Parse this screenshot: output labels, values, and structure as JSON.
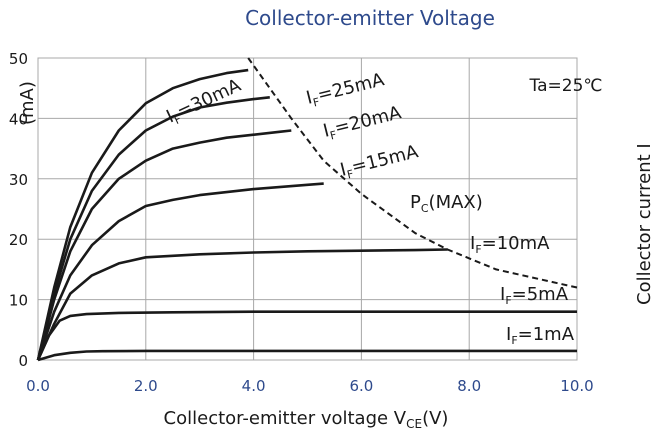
{
  "chart_data": {
    "type": "line",
    "title": "Collector-emitter Voltage",
    "xlabel": "Collector-emitter voltage V",
    "xlabel_sub": "CE",
    "xlabel_unit": "(V)",
    "ylabel_left": "(mA)",
    "ylabel_right": "Collector current I",
    "xlim": [
      0,
      10
    ],
    "ylim": [
      0,
      50
    ],
    "x_ticks": [
      "0.0",
      "2.0",
      "4.0",
      "6.0",
      "8.0",
      "10.0"
    ],
    "y_ticks": [
      "0",
      "10",
      "20",
      "30",
      "40",
      "50"
    ],
    "grid": true,
    "conditions": "Ta=25℃",
    "series": [
      {
        "name": "I_F=1mA",
        "label_main": "I",
        "label_sub": "F",
        "label_rest": "=1mA",
        "x": [
          0,
          0.3,
          0.6,
          0.9,
          1.2,
          2,
          4,
          6,
          8,
          10
        ],
        "y": [
          0,
          0.8,
          1.2,
          1.4,
          1.45,
          1.5,
          1.5,
          1.5,
          1.5,
          1.5
        ]
      },
      {
        "name": "I_F=5mA",
        "label_main": "I",
        "label_sub": "F",
        "label_rest": "=5mA",
        "x": [
          0,
          0.2,
          0.4,
          0.6,
          0.9,
          1.5,
          2.5,
          4,
          6,
          8,
          10
        ],
        "y": [
          0,
          4,
          6.5,
          7.3,
          7.6,
          7.8,
          7.9,
          8,
          8,
          8,
          8
        ]
      },
      {
        "name": "I_F=10mA",
        "label_main": "I",
        "label_sub": "F",
        "label_rest": "=10mA",
        "x": [
          0,
          0.3,
          0.6,
          1,
          1.5,
          2,
          3,
          4,
          5,
          6,
          7,
          7.6
        ],
        "y": [
          0,
          6,
          11,
          14,
          16,
          17,
          17.5,
          17.8,
          18,
          18.1,
          18.2,
          18.3
        ]
      },
      {
        "name": "I_F=15mA",
        "label_main": "I",
        "label_sub": "F",
        "label_rest": "=15mA",
        "x": [
          0,
          0.3,
          0.6,
          1,
          1.5,
          2,
          2.5,
          3,
          4,
          5,
          5.3
        ],
        "y": [
          0,
          8,
          14,
          19,
          23,
          25.5,
          26.5,
          27.3,
          28.3,
          29,
          29.2
        ]
      },
      {
        "name": "I_F=20mA",
        "label_main": "I",
        "label_sub": "F",
        "label_rest": "=20mA",
        "x": [
          0,
          0.3,
          0.6,
          1,
          1.5,
          2,
          2.5,
          3,
          3.5,
          4,
          4.5,
          4.7
        ],
        "y": [
          0,
          10,
          18,
          25,
          30,
          33,
          35,
          36,
          36.8,
          37.3,
          37.8,
          38
        ]
      },
      {
        "name": "I_F=25mA",
        "label_main": "I",
        "label_sub": "F",
        "label_rest": "=25mA",
        "x": [
          0,
          0.3,
          0.6,
          1,
          1.5,
          2,
          2.5,
          3,
          3.5,
          4,
          4.3
        ],
        "y": [
          0,
          11,
          20,
          28,
          34,
          38,
          40.3,
          41.8,
          42.6,
          43.2,
          43.5
        ]
      },
      {
        "name": "I_F=30mA",
        "label_main": "I",
        "label_sub": "F",
        "label_rest": "=30mA",
        "x": [
          0,
          0.3,
          0.6,
          1,
          1.5,
          2,
          2.5,
          3,
          3.5,
          3.9
        ],
        "y": [
          0,
          12,
          22,
          31,
          38,
          42.5,
          45,
          46.5,
          47.5,
          48
        ]
      },
      {
        "name": "P_C(MAX)",
        "label_main": "P",
        "label_sub": "C",
        "label_rest": "(MAX)",
        "dashed": true,
        "x": [
          3.9,
          4.3,
          4.7,
          5.3,
          6,
          7,
          7.6,
          8.5,
          9.5,
          10
        ],
        "y": [
          50,
          45,
          40,
          33,
          27.5,
          21,
          18.3,
          15,
          13,
          12
        ]
      }
    ]
  },
  "colors": {
    "background": "#ffffff",
    "curve": "#1a1a1a",
    "title_text": "#2e4a8c",
    "tick_text": "#2e4a8c",
    "grid": "#a8a8a8"
  }
}
